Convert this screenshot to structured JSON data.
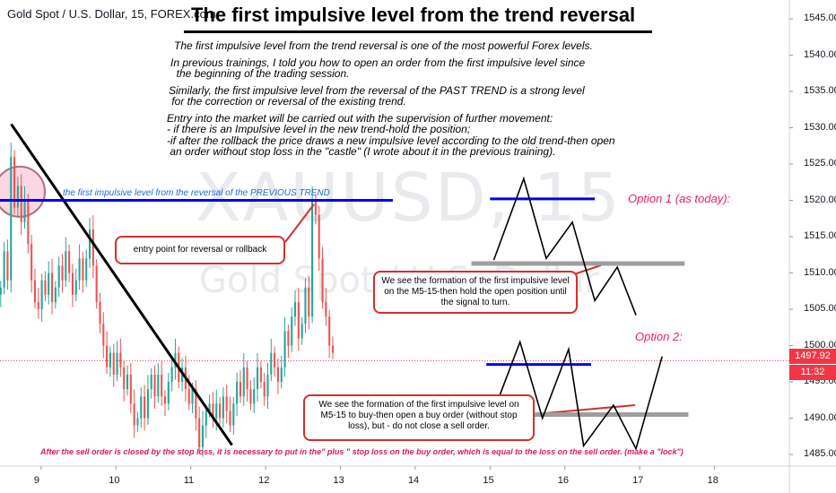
{
  "symbol_title": "Gold Spot / U.S. Dollar, 15, FOREX.com",
  "main_title": "The first impulsive level from the trend reversal",
  "description": [
    "The first impulsive level from the trend reversal is one of the most powerful Forex levels.",
    "In previous trainings, I told you how to open an order from the first impulsive level since\n  the beginning of the trading session.",
    "Similarly, the first impulsive level from the reversal of the PAST TREND is a strong level\n for the correction or reversal of the existing trend.",
    "Entry into the market will be carried out with the supervision of further movement:\n- if there is an Impulsive level in the new trend-hold the position;\n-if after the rollback the price draws a new impulsive level according to the old trend-then open\n an order without stop loss in the \"castle\" (I wrote about it in the previous training)."
  ],
  "watermark": {
    "symbol": "XAUUSD, 15",
    "name": "Gold Spot / U.S. Dollar"
  },
  "annotations": {
    "blue_level_label": "the first impulsive level from the reversal of the PREVIOUS TREND",
    "entry_point": "entry point for reversal or rollback",
    "option1_label": "Option 1 (as today):",
    "option2_label": "Option 2:",
    "option1_note": "We see the formation of the first impulsive level on the M5-15-then hold the open position until the signal to turn.",
    "option2_note": "We see the formation of the first impulsive level on M5-15 to buy-then open a buy order (without stop loss), but - do not close a sell order.",
    "footer": "After the sell order is closed by the stop loss, it is necessary to put in the\" plus \" stop loss on the buy order, which is equal to the loss on the sell order. (make a \"lock\")"
  },
  "current_price": "1497.92",
  "countdown": "11:32",
  "colors": {
    "up": "#26a69a",
    "down": "#ef5350",
    "level_blue": "#0000ee",
    "level_grey": "#9e9e9e",
    "accent": "#e91e63",
    "price_tag": "#f23645"
  },
  "chart_data": {
    "type": "candlestick",
    "x_ticks": [
      "9",
      "10",
      "11",
      "12",
      "13",
      "14",
      "15",
      "16",
      "17",
      "18"
    ],
    "y_ticks": [
      "1485.00",
      "1490.00",
      "1495.00",
      "1500.00",
      "1505.00",
      "1510.00",
      "1515.00",
      "1520.00",
      "1525.00",
      "1530.00",
      "1535.00",
      "1540.00",
      "1545.00"
    ],
    "ylim": [
      1483.4,
      1547.6
    ],
    "xlim": [
      8.45,
      19.0
    ],
    "closes": [
      1508,
      1513,
      1509,
      1526,
      1519,
      1522,
      1517,
      1520,
      1514,
      1509,
      1506,
      1505,
      1509,
      1507,
      1510,
      1506,
      1508,
      1511,
      1509,
      1513,
      1510,
      1507,
      1509,
      1512,
      1509,
      1512,
      1516,
      1511,
      1506,
      1503,
      1500,
      1497,
      1499,
      1496,
      1499,
      1497,
      1494,
      1496,
      1492,
      1489,
      1490,
      1493,
      1490,
      1494,
      1496,
      1493,
      1496,
      1493,
      1492,
      1495,
      1497,
      1499,
      1495,
      1497,
      1494,
      1492,
      1494,
      1490,
      1486,
      1489,
      1491,
      1492,
      1490,
      1492,
      1490,
      1493,
      1491,
      1489,
      1492,
      1495,
      1493,
      1497,
      1494,
      1492,
      1494,
      1497,
      1495,
      1493,
      1496,
      1499,
      1497,
      1495,
      1497,
      1502,
      1500,
      1504,
      1506,
      1501,
      1503,
      1508,
      1504,
      1520,
      1518,
      1512,
      1506,
      1504,
      1500,
      1499
    ],
    "trendline": {
      "x": [
        8.6,
        11.55
      ],
      "y": [
        1530.5,
        1486.3
      ]
    },
    "blue_level": {
      "x": [
        8.45,
        13.7
      ],
      "y": 1520.0,
      "label": "the first impulsive level from the reversal of the PREVIOUS TREND"
    },
    "option1": {
      "label": "Option 1 (as today):",
      "blue_level": {
        "x": [
          15.0,
          16.4
        ],
        "y": 1520.2
      },
      "grey_level": {
        "x": [
          14.75,
          17.6
        ],
        "y": 1511.3
      },
      "path": {
        "x": [
          15.05,
          15.45,
          15.75,
          16.1,
          16.4,
          16.7,
          16.95
        ],
        "y": [
          1511.8,
          1523.0,
          1512.0,
          1517.0,
          1506.2,
          1510.8,
          1504.2
        ]
      }
    },
    "option2": {
      "label": "Option 2:",
      "blue_level": {
        "x": [
          14.95,
          16.35
        ],
        "y": 1497.4
      },
      "grey_level": {
        "x": [
          15.0,
          17.65
        ],
        "y": 1490.5
      },
      "path": {
        "x": [
          15.05,
          15.4,
          15.7,
          16.05,
          16.25,
          16.65,
          16.95,
          17.3
        ],
        "y": [
          1491.0,
          1500.5,
          1490.0,
          1499.5,
          1486.2,
          1491.8,
          1485.8,
          1498.5
        ]
      }
    },
    "current_price": 1497.92
  }
}
